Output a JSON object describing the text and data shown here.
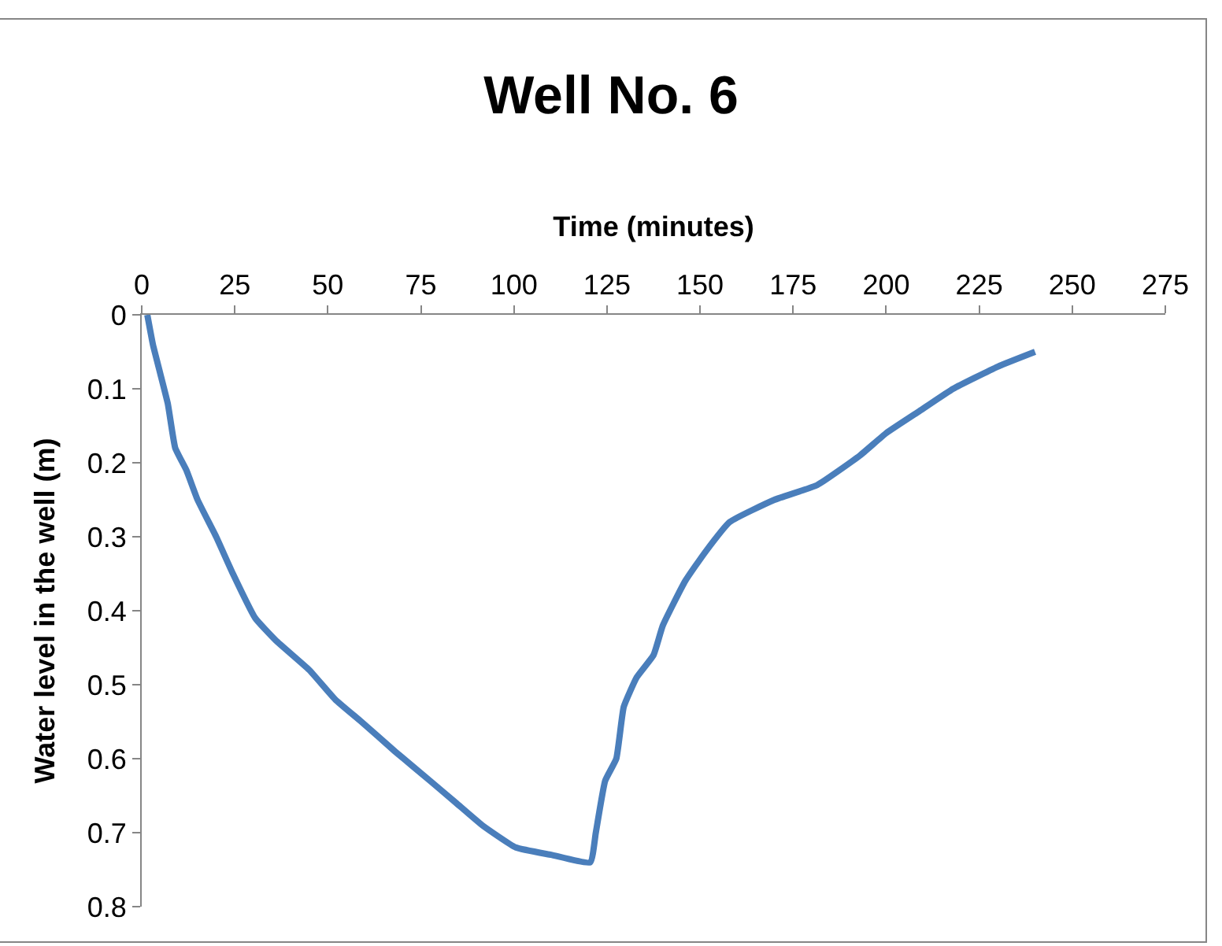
{
  "chart_data": {
    "type": "line",
    "title": "Well No. 6",
    "xlabel": "Time (minutes)",
    "ylabel": "Water level in the well (m)",
    "x": [
      1.5,
      3,
      4.5,
      7,
      9,
      12,
      15,
      20,
      24.5,
      30.5,
      36,
      45,
      52,
      59,
      68,
      77.5,
      84.5,
      91.5,
      100.5,
      110,
      120.5,
      122,
      124.5,
      127.5,
      129.5,
      133,
      137.5,
      140,
      146,
      151.5,
      158,
      170,
      181.5,
      193,
      200,
      209,
      218,
      230,
      240
    ],
    "series": [
      {
        "color": "#4a7ebb",
        "values": [
          0,
          0.04,
          0.07,
          0.12,
          0.18,
          0.21,
          0.25,
          0.3,
          0.35,
          0.41,
          0.44,
          0.48,
          0.52,
          0.55,
          0.59,
          0.63,
          0.66,
          0.69,
          0.72,
          0.73,
          0.74,
          0.7,
          0.63,
          0.6,
          0.53,
          0.49,
          0.46,
          0.42,
          0.36,
          0.32,
          0.28,
          0.25,
          0.23,
          0.19,
          0.16,
          0.13,
          0.1,
          0.07,
          0.05
        ]
      }
    ],
    "xlim": [
      0,
      275
    ],
    "xticks": [
      0,
      25,
      50,
      75,
      100,
      125,
      150,
      175,
      200,
      225,
      250,
      275
    ],
    "ylim": [
      0.8,
      0
    ],
    "yticks": [
      0,
      0.1,
      0.2,
      0.3,
      0.4,
      0.5,
      0.6,
      0.7,
      0.8
    ],
    "legend": false,
    "marker": "none",
    "line_style": "solid"
  }
}
